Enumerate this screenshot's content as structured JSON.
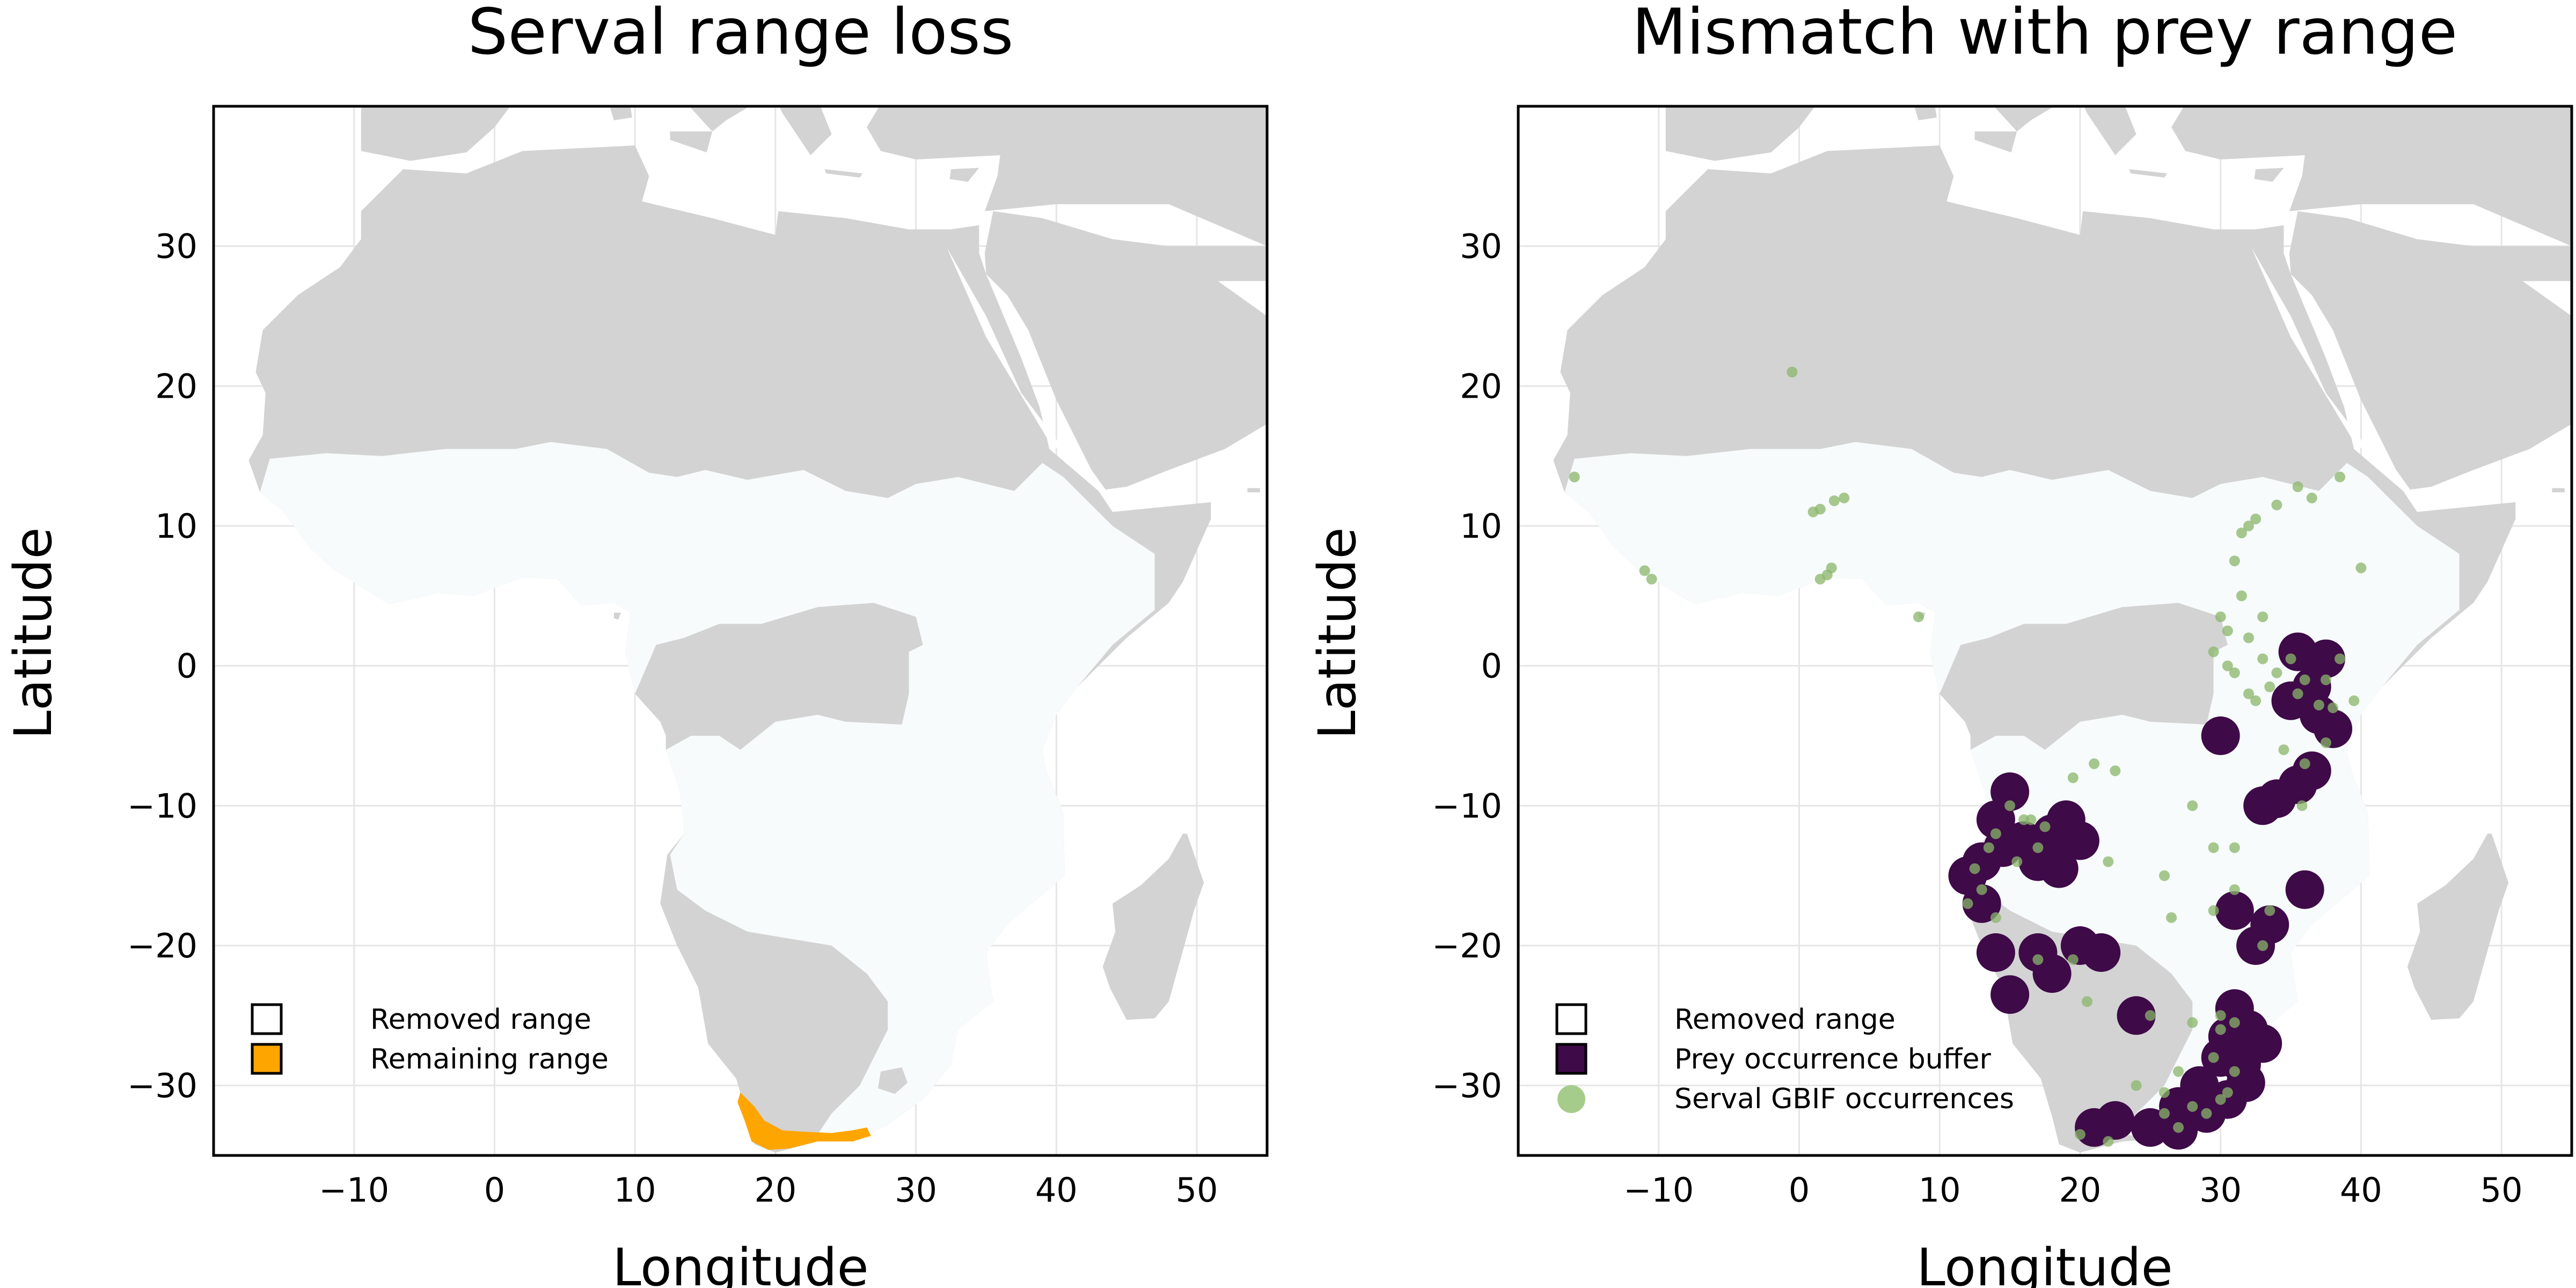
{
  "panels": [
    {
      "id": "left",
      "title": "Serval range loss",
      "xlabel": "Longitude",
      "ylabel": "Latitude",
      "legend": [
        {
          "label": "Removed range",
          "color": "#ffffff",
          "shape": "square"
        },
        {
          "label": "Remaining range",
          "color": "#FFA500",
          "shape": "square"
        }
      ]
    },
    {
      "id": "right",
      "title": "Mismatch with prey range",
      "xlabel": "Longitude",
      "ylabel": "Latitude",
      "legend": [
        {
          "label": "Removed range",
          "color": "#ffffff",
          "shape": "square"
        },
        {
          "label": "Prey occurrence buffer",
          "color": "#3E0A48",
          "shape": "square"
        },
        {
          "label": "Serval GBIF occurrences",
          "color": "#a6cc8b",
          "shape": "circle"
        }
      ]
    }
  ],
  "chart_data": [
    {
      "type": "map",
      "title": "Serval range loss",
      "xlabel": "Longitude",
      "ylabel": "Latitude",
      "xlim": [
        -20,
        55
      ],
      "ylim": [
        -35,
        40
      ],
      "xticks": [
        -10,
        0,
        10,
        20,
        30,
        40,
        50
      ],
      "yticks": [
        -30,
        -20,
        -10,
        0,
        10,
        20,
        30
      ],
      "grid": true,
      "legend_position": "bottom-left",
      "colors": {
        "land": "#d3d3d3",
        "removed_range": "#f7fbfb",
        "remaining_range": "#FFA500"
      },
      "series": [
        {
          "name": "Remaining range",
          "polygon": [
            [
              17.5,
              -30.5
            ],
            [
              18.5,
              -31.5
            ],
            [
              19.2,
              -32.5
            ],
            [
              20.5,
              -33.2
            ],
            [
              22,
              -33.3
            ],
            [
              24,
              -33.4
            ],
            [
              25.5,
              -33.2
            ],
            [
              26.5,
              -33.0
            ],
            [
              26.8,
              -33.6
            ],
            [
              25.5,
              -34.0
            ],
            [
              23,
              -34.0
            ],
            [
              21,
              -34.5
            ],
            [
              19.5,
              -34.6
            ],
            [
              18.3,
              -34.0
            ],
            [
              17.8,
              -32.5
            ],
            [
              17.3,
              -31.2
            ]
          ]
        }
      ]
    },
    {
      "type": "map",
      "title": "Mismatch with prey range",
      "xlabel": "Longitude",
      "ylabel": "Latitude",
      "xlim": [
        -20,
        55
      ],
      "ylim": [
        -35,
        40
      ],
      "xticks": [
        -10,
        0,
        10,
        20,
        30,
        40,
        50
      ],
      "yticks": [
        -30,
        -20,
        -10,
        0,
        10,
        20,
        30
      ],
      "grid": true,
      "legend_position": "bottom-left",
      "colors": {
        "land": "#d3d3d3",
        "removed_range": "#f7fbfb",
        "prey_buffer": "#3E0A48",
        "occurrences": "#8ab56a"
      },
      "series": [
        {
          "name": "Prey occurrence buffer",
          "blobs": [
            [
              35.5,
              1
            ],
            [
              37.5,
              0.5
            ],
            [
              36.5,
              -1.5
            ],
            [
              35,
              -2.5
            ],
            [
              37,
              -3.5
            ],
            [
              38,
              -4.5
            ],
            [
              36.5,
              -7.5
            ],
            [
              35.5,
              -8.5
            ],
            [
              34,
              -9.5
            ],
            [
              33,
              -10
            ],
            [
              30,
              -5
            ],
            [
              36,
              -16
            ],
            [
              33.5,
              -18.5
            ],
            [
              32.5,
              -20
            ],
            [
              31,
              -17.5
            ],
            [
              15,
              -9
            ],
            [
              14,
              -11
            ],
            [
              14.5,
              -13
            ],
            [
              13,
              -14
            ],
            [
              16,
              -12.5
            ],
            [
              18,
              -12
            ],
            [
              19,
              -11
            ],
            [
              20,
              -12.5
            ],
            [
              17,
              -14
            ],
            [
              18.5,
              -14.5
            ],
            [
              12,
              -15
            ],
            [
              13,
              -17
            ],
            [
              14,
              -20.5
            ],
            [
              17,
              -20.5
            ],
            [
              18,
              -22
            ],
            [
              20,
              -20
            ],
            [
              21.5,
              -20.5
            ],
            [
              15,
              -23.5
            ],
            [
              24,
              -25
            ],
            [
              31,
              -24.5
            ],
            [
              32,
              -26
            ],
            [
              30.5,
              -26.5
            ],
            [
              30,
              -28
            ],
            [
              31.5,
              -28.5
            ],
            [
              33,
              -27
            ],
            [
              28.5,
              -30
            ],
            [
              27,
              -31.5
            ],
            [
              29,
              -32
            ],
            [
              30.5,
              -31
            ],
            [
              25,
              -33
            ],
            [
              27,
              -33.2
            ],
            [
              21,
              -33
            ],
            [
              22.5,
              -32.5
            ],
            [
              31.8,
              -29.8
            ]
          ]
        },
        {
          "name": "Serval GBIF occurrences",
          "points": [
            [
              -16,
              13.5
            ],
            [
              -0.5,
              21
            ],
            [
              1,
              11
            ],
            [
              1.5,
              11.2
            ],
            [
              2.5,
              11.8
            ],
            [
              3.2,
              12
            ],
            [
              2.3,
              7
            ],
            [
              2,
              6.5
            ],
            [
              1.5,
              6.2
            ],
            [
              -11,
              6.8
            ],
            [
              -10.5,
              6.2
            ],
            [
              8.5,
              3.5
            ],
            [
              31,
              7.5
            ],
            [
              31.5,
              9.5
            ],
            [
              32,
              10
            ],
            [
              32.5,
              10.5
            ],
            [
              34,
              11.5
            ],
            [
              35.5,
              12.8
            ],
            [
              36.5,
              12
            ],
            [
              38.5,
              13.5
            ],
            [
              31.5,
              5
            ],
            [
              30.5,
              2.5
            ],
            [
              32,
              2
            ],
            [
              30.5,
              0
            ],
            [
              31,
              -0.5
            ],
            [
              34,
              -0.5
            ],
            [
              36,
              -1
            ],
            [
              33.5,
              -1.5
            ],
            [
              35.5,
              -2
            ],
            [
              37,
              -2.8
            ],
            [
              37.5,
              -1
            ],
            [
              38.5,
              0.5
            ],
            [
              35,
              0.5
            ],
            [
              33,
              0.5
            ],
            [
              32.5,
              -2.5
            ],
            [
              32,
              -2
            ],
            [
              29.5,
              1
            ],
            [
              30,
              3.5
            ],
            [
              33,
              3.5
            ],
            [
              39.5,
              -2.5
            ],
            [
              40,
              7
            ],
            [
              38,
              -3
            ],
            [
              34.5,
              -6
            ],
            [
              36,
              -7
            ],
            [
              37.5,
              -5.5
            ],
            [
              35.8,
              -10
            ],
            [
              22.5,
              -7.5
            ],
            [
              19.5,
              -8
            ],
            [
              21,
              -7
            ],
            [
              22,
              -14
            ],
            [
              28,
              -10
            ],
            [
              26,
              -15
            ],
            [
              29.5,
              -13
            ],
            [
              31,
              -13
            ],
            [
              26.5,
              -18
            ],
            [
              29.5,
              -17.5
            ],
            [
              33,
              -20
            ],
            [
              33.5,
              -17.5
            ],
            [
              31,
              -16
            ],
            [
              15,
              -10
            ],
            [
              14,
              -12
            ],
            [
              16,
              -11
            ],
            [
              13.5,
              -13
            ],
            [
              17,
              -13
            ],
            [
              15.5,
              -14
            ],
            [
              12.5,
              -14.5
            ],
            [
              13,
              -16
            ],
            [
              16.5,
              -11
            ],
            [
              17.5,
              -11.5
            ],
            [
              12,
              -17
            ],
            [
              14,
              -18
            ],
            [
              17,
              -21
            ],
            [
              19.5,
              -21
            ],
            [
              20.5,
              -24
            ],
            [
              25,
              -25
            ],
            [
              28,
              -25.5
            ],
            [
              30,
              -25
            ],
            [
              31,
              -25.5
            ],
            [
              30,
              -26
            ],
            [
              29.5,
              -28
            ],
            [
              27,
              -29
            ],
            [
              31,
              -29
            ],
            [
              30.5,
              -30.5
            ],
            [
              28,
              -31.5
            ],
            [
              26,
              -30.5
            ],
            [
              24,
              -30
            ],
            [
              22,
              -34
            ],
            [
              20,
              -33.5
            ],
            [
              27,
              -33
            ],
            [
              30,
              -31
            ],
            [
              29,
              -32
            ],
            [
              26,
              -32
            ]
          ]
        }
      ]
    }
  ]
}
